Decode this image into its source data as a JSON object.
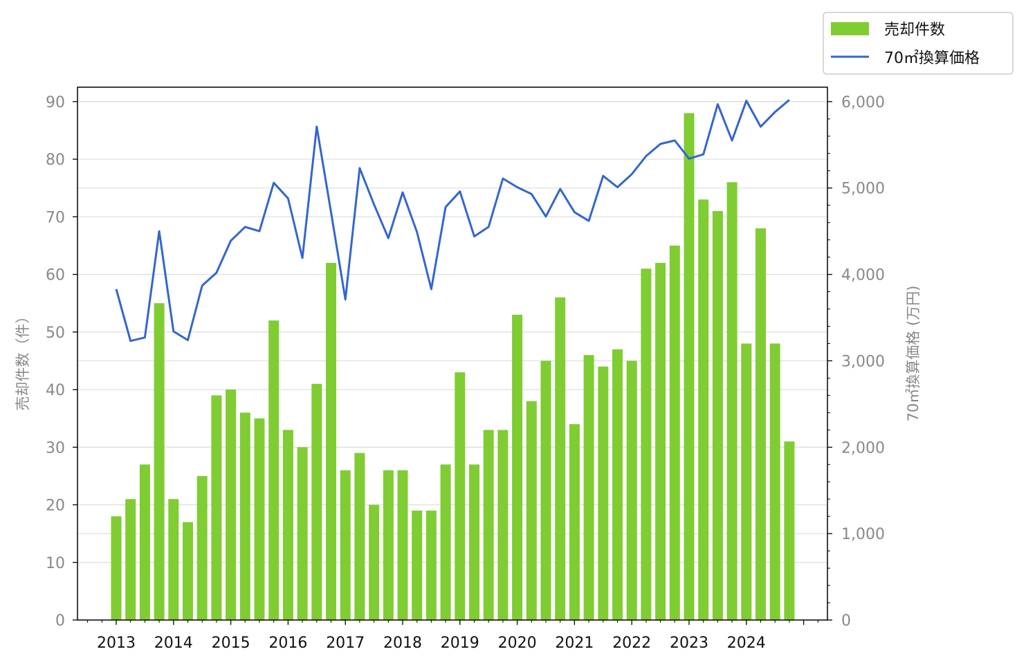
{
  "chart_data": {
    "type": "bar",
    "x_tick_labels": [
      "2013",
      "2014",
      "2015",
      "2016",
      "2017",
      "2018",
      "2019",
      "2020",
      "2021",
      "2022",
      "2023",
      "2024"
    ],
    "y_left_label": "売却件数（件）",
    "y_right_label": "70㎡換算価格 (万円)",
    "y_left_ticks": [
      "0",
      "10",
      "20",
      "30",
      "40",
      "50",
      "60",
      "70",
      "80",
      "90"
    ],
    "y_right_ticks": [
      "0",
      "1,000",
      "2,000",
      "3,000",
      "4,000",
      "5,000",
      "6,000"
    ],
    "y_left_lim": [
      0,
      92.5
    ],
    "y_right_lim": [
      0,
      6167
    ],
    "grid": "horizontal",
    "legend_position": "top-right",
    "series": [
      {
        "name": "売却件数",
        "kind": "bar",
        "axis": "left",
        "color": "#80cc33",
        "values": [
          18,
          21,
          27,
          55,
          21,
          17,
          25,
          39,
          40,
          36,
          35,
          52,
          33,
          30,
          41,
          62,
          26,
          29,
          20,
          26,
          26,
          19,
          19,
          27,
          43,
          27,
          33,
          33,
          53,
          38,
          45,
          56,
          34,
          46,
          44,
          47,
          45,
          61,
          62,
          65,
          88,
          73,
          71,
          76,
          48,
          68,
          48,
          31
        ]
      },
      {
        "name": "70㎡換算価格",
        "kind": "line",
        "axis": "right",
        "color": "#3366cc",
        "values": [
          3830,
          3230,
          3270,
          4500,
          3340,
          3240,
          3870,
          4020,
          4390,
          4550,
          4500,
          5060,
          4880,
          4190,
          5710,
          4720,
          3710,
          5230,
          4810,
          4420,
          4950,
          4490,
          3830,
          4780,
          4960,
          4440,
          4550,
          5110,
          5010,
          4930,
          4670,
          4990,
          4720,
          4620,
          5140,
          5010,
          5160,
          5370,
          5510,
          5550,
          5340,
          5390,
          5970,
          5550,
          6010,
          5710,
          5880,
          6020
        ]
      }
    ]
  }
}
